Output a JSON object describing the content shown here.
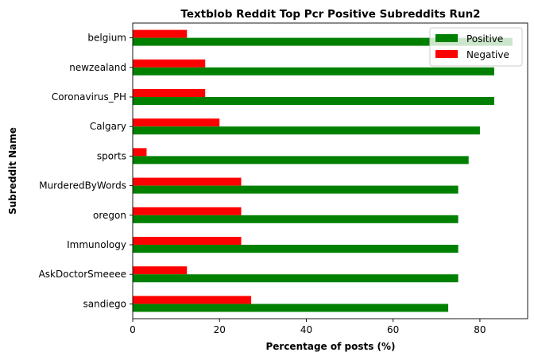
{
  "chart_data": {
    "type": "bar",
    "orientation": "horizontal",
    "title": "Textblob Reddit Top Pcr Positive Subreddits Run2",
    "xlabel": "Percentage of posts (%)",
    "ylabel": "Subreddit Name",
    "xlim": [
      0,
      91
    ],
    "xticks": [
      "0",
      "20",
      "40",
      "60",
      "80"
    ],
    "categories": [
      "belgium",
      "newzealand",
      "Coronavirus_PH",
      "Calgary",
      "sports",
      "MurderedByWords",
      "oregon",
      "Immunology",
      "AskDoctorSmeeee",
      "sandiego"
    ],
    "series": [
      {
        "name": "Positive",
        "color": "#008000",
        "values": [
          87.5,
          83.3,
          83.3,
          80.0,
          77.4,
          75.0,
          75.0,
          75.0,
          75.0,
          72.7
        ]
      },
      {
        "name": "Negative",
        "color": "#ff0000",
        "values": [
          12.5,
          16.7,
          16.7,
          20.0,
          3.2,
          25.0,
          25.0,
          25.0,
          12.5,
          27.3
        ]
      }
    ],
    "legend_position": "upper-right",
    "grid": false
  }
}
